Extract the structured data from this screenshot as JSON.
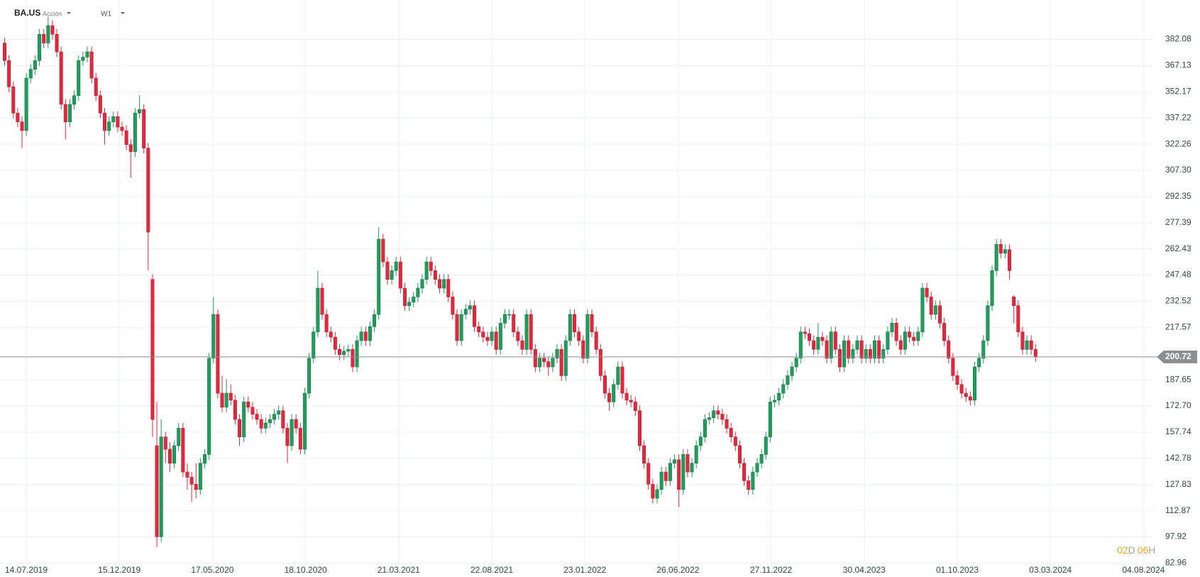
{
  "header": {
    "symbol": "BA.US",
    "instrument_type": "Acción",
    "timeframe": "W1"
  },
  "countdown": {
    "days": "02",
    "days_unit": "D",
    "hours": "06",
    "hours_unit": "H"
  },
  "chart_data": {
    "type": "candlestick",
    "xtick_labels": [
      "14.07.2019",
      "15.12.2019",
      "17.05.2020",
      "18.10.2020",
      "21.03.2021",
      "22.08.2021",
      "23.01.2022",
      "26.06.2022",
      "27.11.2022",
      "30.04.2023",
      "01.10.2023",
      "03.03.2024",
      "04.08.2024"
    ],
    "ylim": [
      81.5,
      404.6
    ],
    "yticks": [
      82.96,
      97.92,
      112.87,
      127.83,
      142.78,
      157.74,
      {
        "value": 172.7,
        "label": "172.70"
      },
      187.65,
      217.57,
      232.52,
      247.48,
      262.43,
      277.39,
      292.35,
      {
        "value": 307.3,
        "label": "307.30"
      },
      322.26,
      337.22,
      352.17,
      367.13,
      382.08
    ],
    "grid": true,
    "up_color": "#1f9d5c",
    "down_color": "#e3283e",
    "last_price_color": "#8a8f94",
    "series": {
      "open": [
        380,
        370,
        355,
        340,
        335,
        330,
        360,
        365,
        370,
        385,
        380,
        390,
        385,
        375,
        345,
        335,
        345,
        350,
        370,
        372,
        375,
        360,
        350,
        340,
        330,
        335,
        338,
        332,
        330,
        322,
        318,
        340,
        342,
        320,
        245,
        150,
        98,
        155,
        148,
        140,
        150,
        160,
        135,
        132,
        128,
        125,
        140,
        145,
        200,
        225,
        180,
        172,
        180,
        176,
        165,
        155,
        175,
        172,
        168,
        165,
        160,
        163,
        165,
        168,
        170,
        160,
        150,
        165,
        160,
        148,
        180,
        200,
        215,
        240,
        225,
        215,
        212,
        205,
        202,
        204,
        205,
        195,
        210,
        215,
        210,
        218,
        225,
        268,
        255,
        245,
        250,
        255,
        240,
        230,
        232,
        235,
        240,
        245,
        255,
        250,
        245,
        240,
        245,
        235,
        225,
        210,
        225,
        228,
        230,
        218,
        215,
        212,
        210,
        215,
        205,
        220,
        225,
        225,
        215,
        210,
        205,
        225,
        205,
        195,
        200,
        198,
        195,
        200,
        205,
        190,
        210,
        225,
        215,
        210,
        200,
        225,
        215,
        205,
        190,
        180,
        175,
        185,
        195,
        180,
        176,
        175,
        170,
        150,
        140,
        128,
        120,
        125,
        135,
        130,
        140,
        142,
        125,
        145,
        135,
        140,
        150,
        155,
        165,
        166,
        170,
        168,
        165,
        160,
        155,
        150,
        140,
        130,
        125,
        135,
        140,
        145,
        155,
        175,
        176,
        180,
        185,
        190,
        195,
        200,
        215,
        214,
        210,
        205,
        212,
        210,
        200,
        215,
        205,
        195,
        210,
        200,
        205,
        210,
        200,
        205,
        200,
        210,
        200,
        205,
        215,
        220,
        210,
        205,
        215,
        212,
        210,
        215,
        240,
        235,
        225,
        230,
        220,
        210,
        200,
        190,
        185,
        180,
        178,
        176,
        195,
        200,
        210,
        230,
        250,
        265,
        260,
        262,
        235,
        230,
        215,
        205,
        210,
        205
      ],
      "high": [
        383,
        373,
        358,
        343,
        338,
        363,
        368,
        373,
        388,
        388,
        395,
        393,
        388,
        378,
        348,
        348,
        353,
        373,
        375,
        378,
        378,
        363,
        353,
        343,
        338,
        341,
        341,
        335,
        333,
        325,
        343,
        350,
        345,
        323,
        248,
        175,
        165,
        158,
        152,
        153,
        163,
        163,
        140,
        135,
        140,
        143,
        148,
        203,
        235,
        228,
        190,
        188,
        185,
        179,
        168,
        178,
        178,
        175,
        171,
        168,
        166,
        168,
        171,
        173,
        173,
        163,
        168,
        168,
        163,
        183,
        203,
        218,
        250,
        243,
        228,
        218,
        215,
        208,
        207,
        208,
        208,
        213,
        218,
        218,
        221,
        228,
        275,
        271,
        258,
        253,
        258,
        258,
        243,
        235,
        238,
        243,
        248,
        258,
        258,
        253,
        248,
        248,
        248,
        238,
        228,
        228,
        231,
        233,
        233,
        221,
        218,
        215,
        218,
        218,
        223,
        228,
        228,
        228,
        218,
        213,
        228,
        228,
        208,
        203,
        203,
        201,
        203,
        208,
        208,
        213,
        228,
        228,
        218,
        213,
        228,
        228,
        218,
        208,
        193,
        183,
        188,
        198,
        198,
        183,
        179,
        178,
        173,
        153,
        143,
        131,
        128,
        138,
        138,
        143,
        145,
        145,
        148,
        148,
        143,
        153,
        158,
        168,
        169,
        173,
        173,
        171,
        168,
        163,
        158,
        153,
        143,
        133,
        138,
        143,
        148,
        158,
        178,
        179,
        183,
        188,
        193,
        198,
        203,
        218,
        218,
        217,
        213,
        220,
        215,
        213,
        218,
        218,
        208,
        213,
        213,
        208,
        213,
        213,
        208,
        208,
        213,
        213,
        208,
        218,
        223,
        223,
        213,
        218,
        218,
        215,
        218,
        243,
        243,
        238,
        233,
        233,
        223,
        213,
        203,
        193,
        188,
        183,
        181,
        198,
        203,
        213,
        233,
        253,
        268,
        268,
        265,
        265,
        236,
        233,
        218,
        213,
        213,
        208
      ],
      "low": [
        367,
        352,
        337,
        332,
        320,
        327,
        357,
        362,
        367,
        377,
        377,
        382,
        372,
        342,
        325,
        332,
        342,
        347,
        367,
        369,
        357,
        347,
        337,
        322,
        327,
        332,
        329,
        327,
        319,
        303,
        315,
        337,
        317,
        250,
        155,
        92,
        95,
        140,
        135,
        137,
        147,
        132,
        125,
        118,
        120,
        122,
        137,
        142,
        197,
        177,
        169,
        169,
        173,
        162,
        150,
        152,
        169,
        165,
        162,
        157,
        157,
        160,
        162,
        165,
        157,
        140,
        147,
        157,
        145,
        145,
        177,
        197,
        212,
        222,
        212,
        209,
        202,
        199,
        199,
        201,
        192,
        192,
        207,
        207,
        207,
        215,
        222,
        252,
        242,
        242,
        247,
        237,
        227,
        227,
        229,
        232,
        237,
        242,
        247,
        242,
        237,
        237,
        232,
        222,
        207,
        207,
        222,
        225,
        215,
        212,
        209,
        207,
        207,
        202,
        202,
        217,
        222,
        212,
        207,
        202,
        202,
        202,
        192,
        192,
        195,
        190,
        192,
        197,
        187,
        187,
        207,
        212,
        207,
        197,
        197,
        212,
        202,
        187,
        177,
        170,
        172,
        182,
        177,
        173,
        172,
        167,
        147,
        137,
        125,
        117,
        117,
        122,
        127,
        127,
        137,
        115,
        122,
        132,
        132,
        137,
        147,
        152,
        162,
        163,
        165,
        162,
        157,
        152,
        147,
        137,
        127,
        122,
        122,
        132,
        137,
        142,
        152,
        172,
        173,
        177,
        182,
        187,
        192,
        197,
        211,
        207,
        202,
        202,
        207,
        197,
        197,
        202,
        192,
        192,
        197,
        197,
        202,
        197,
        197,
        197,
        197,
        197,
        197,
        202,
        212,
        207,
        202,
        202,
        209,
        207,
        207,
        212,
        232,
        222,
        222,
        217,
        207,
        197,
        187,
        182,
        177,
        175,
        173,
        173,
        192,
        197,
        207,
        227,
        247,
        257,
        257,
        245,
        220,
        212,
        202,
        202,
        202,
        198
      ],
      "close": [
        370,
        355,
        340,
        335,
        330,
        360,
        365,
        370,
        385,
        380,
        390,
        385,
        375,
        345,
        335,
        345,
        350,
        370,
        372,
        375,
        360,
        350,
        340,
        330,
        335,
        338,
        332,
        330,
        322,
        318,
        340,
        342,
        320,
        272,
        165,
        98,
        155,
        148,
        140,
        150,
        160,
        135,
        132,
        128,
        125,
        140,
        145,
        200,
        225,
        180,
        172,
        180,
        176,
        165,
        155,
        175,
        172,
        168,
        165,
        160,
        163,
        165,
        168,
        170,
        160,
        150,
        165,
        160,
        148,
        180,
        200,
        215,
        240,
        225,
        215,
        212,
        205,
        202,
        204,
        205,
        195,
        210,
        215,
        210,
        218,
        225,
        268,
        255,
        245,
        250,
        255,
        240,
        230,
        232,
        235,
        240,
        245,
        255,
        250,
        245,
        240,
        245,
        235,
        225,
        210,
        225,
        228,
        230,
        218,
        215,
        212,
        210,
        215,
        205,
        220,
        225,
        225,
        215,
        210,
        205,
        225,
        205,
        195,
        200,
        198,
        195,
        200,
        205,
        190,
        210,
        225,
        215,
        210,
        200,
        225,
        215,
        205,
        190,
        180,
        175,
        185,
        195,
        180,
        176,
        175,
        170,
        150,
        140,
        128,
        120,
        125,
        135,
        130,
        140,
        142,
        125,
        145,
        135,
        140,
        150,
        155,
        165,
        166,
        170,
        168,
        165,
        160,
        155,
        150,
        140,
        130,
        125,
        135,
        140,
        145,
        155,
        175,
        176,
        180,
        185,
        190,
        195,
        200,
        215,
        214,
        210,
        205,
        212,
        210,
        200,
        215,
        205,
        195,
        210,
        200,
        205,
        210,
        200,
        205,
        200,
        210,
        200,
        205,
        215,
        220,
        210,
        205,
        215,
        212,
        210,
        215,
        240,
        235,
        225,
        230,
        220,
        210,
        200,
        190,
        185,
        180,
        178,
        176,
        195,
        200,
        210,
        230,
        250,
        265,
        260,
        262,
        250,
        230,
        215,
        205,
        210,
        205,
        200.72
      ]
    }
  }
}
